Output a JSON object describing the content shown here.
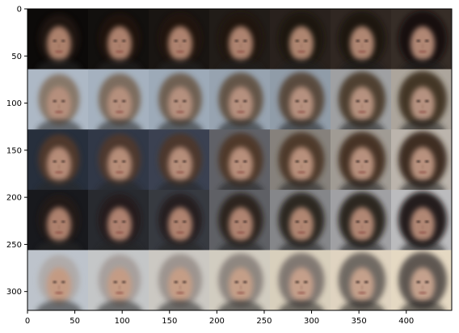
{
  "figure": {
    "kind": "image-grid-with-pixel-axes",
    "grid": {
      "rows": 5,
      "cols": 7
    }
  },
  "axes": {
    "x_ticks": [
      0,
      50,
      100,
      150,
      200,
      250,
      300,
      350,
      400
    ],
    "y_ticks": [
      0,
      50,
      100,
      150,
      200,
      250,
      300
    ],
    "xlim": [
      0,
      448
    ],
    "ylim": [
      320,
      0
    ],
    "frame_color": "#000000"
  },
  "tiles": {
    "rows": [
      {
        "bg": [
          "#0d0b0a",
          "#1b1714",
          "#2c241f",
          "#3a302a"
        ],
        "hair": "#2b1a12",
        "skin": "#bf8f78",
        "hair_dark_trend": true
      },
      {
        "bg": [
          "#b8c4d2",
          "#a7b5c4",
          "#9aa6b3",
          "#b7b0a6"
        ],
        "hair": "#7b5b3d",
        "skin": "#c49a86"
      },
      {
        "bg": [
          "#2a3240",
          "#3f4657",
          "#8f8a84",
          "#c7c0b7"
        ],
        "hair": "#6a4328",
        "skin": "#c79a84"
      },
      {
        "bg": [
          "#1a1b1f",
          "#3b3e45",
          "#8e8f92",
          "#c7c7c9"
        ],
        "hair": "#2a1a14",
        "skin": "#c08f79"
      },
      {
        "bg": [
          "#c9d0d8",
          "#d8d5cf",
          "#e6dcc8",
          "#f3e6cf"
        ],
        "hair": "#b4a7a1",
        "skin": "#d2a48a"
      }
    ]
  }
}
